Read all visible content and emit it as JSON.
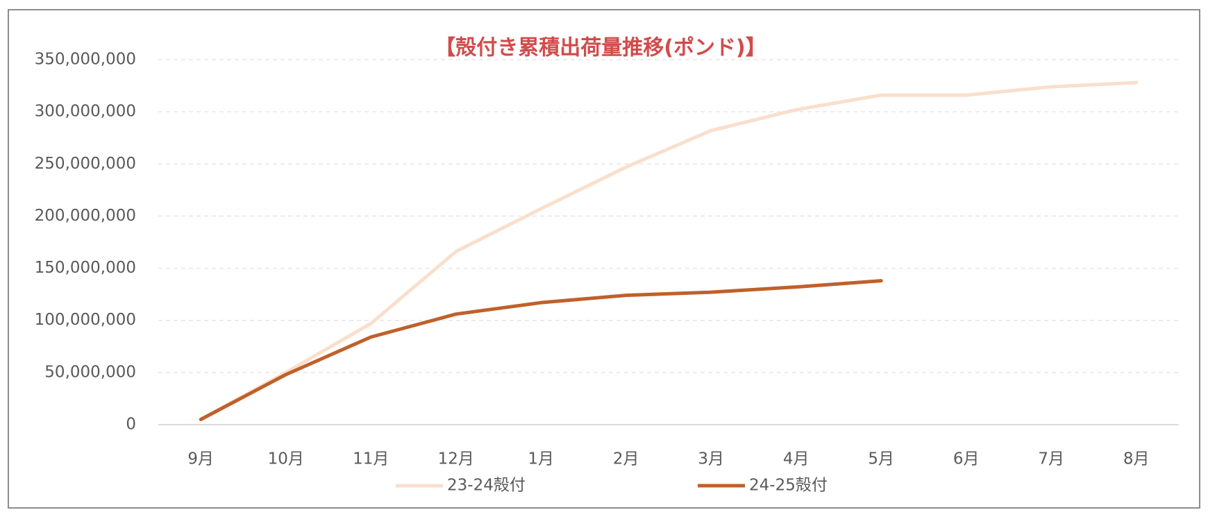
{
  "chart_data": {
    "type": "line",
    "title": "【殻付き累積出荷量推移(ポンド)】",
    "categories": [
      "9月",
      "10月",
      "11月",
      "12月",
      "1月",
      "2月",
      "3月",
      "4月",
      "5月",
      "6月",
      "7月",
      "8月"
    ],
    "series": [
      {
        "name": "23-24殻付",
        "color": "#f9dfcc",
        "values": [
          5000000,
          50000000,
          97000000,
          166000000,
          207000000,
          247000000,
          282000000,
          302000000,
          316000000,
          316000000,
          324000000,
          328000000
        ]
      },
      {
        "name": "24-25殻付",
        "color": "#c0602a",
        "values": [
          5000000,
          48000000,
          84000000,
          106000000,
          117000000,
          124000000,
          127000000,
          132000000,
          138000000,
          null,
          null,
          null
        ]
      }
    ],
    "ylim": [
      0,
      350000000
    ],
    "yticks": [
      0,
      {
        "value": 50000000,
        "label": "50,000,000"
      },
      {
        "value": 100000000,
        "label": "100,000,000"
      },
      {
        "value": 150000000,
        "label": "150,000,000"
      },
      {
        "value": 200000000,
        "label": "200,000,000"
      },
      {
        "value": 250000000,
        "label": "250,000,000"
      },
      {
        "value": 300000000,
        "label": "300,000,000"
      },
      {
        "value": 350000000,
        "label": "350,000,000"
      }
    ],
    "grid": true,
    "legend": "bottom"
  }
}
